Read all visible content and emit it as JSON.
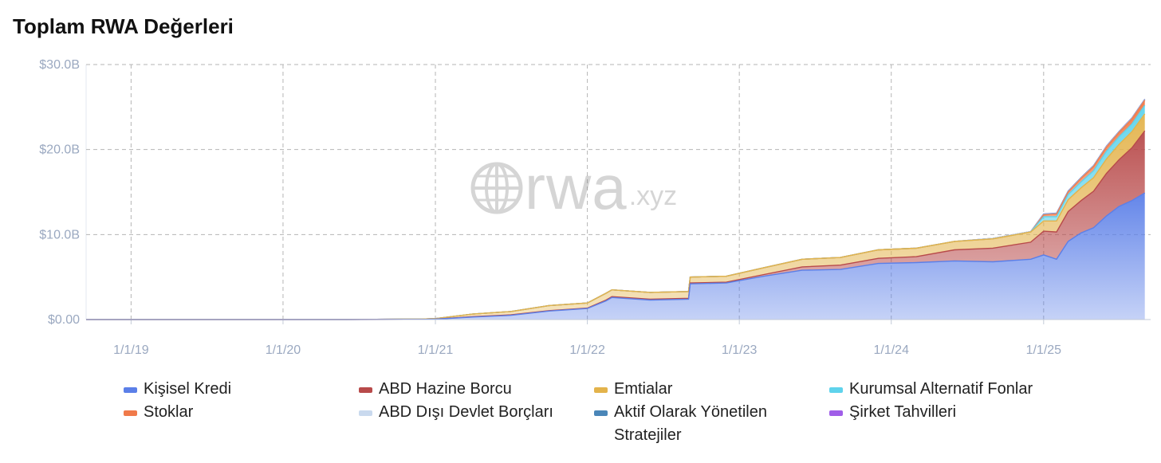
{
  "title": "Toplam RWA Değerleri",
  "watermark": {
    "main": "rwa",
    "sub": ".xyz",
    "icon": "globe-icon"
  },
  "chart_data": {
    "type": "area",
    "stacked": true,
    "x_ticks": [
      "1/1/19",
      "1/1/20",
      "1/1/21",
      "1/1/22",
      "1/1/23",
      "1/1/24",
      "1/1/25"
    ],
    "y_ticks": [
      "$0.00",
      "$10.0B",
      "$20.0B",
      "$30.0B"
    ],
    "ylim": [
      0,
      30
    ],
    "y_unit": "B USD",
    "xlim": [
      "2018-09-15",
      "2025-09-15"
    ],
    "grid": true,
    "legend_position": "bottom",
    "x": [
      "2018-09-15",
      "2019-06-01",
      "2020-06-01",
      "2020-12-01",
      "2021-01-01",
      "2021-04-01",
      "2021-07-01",
      "2021-10-01",
      "2022-01-01",
      "2022-02-15",
      "2022-03-01",
      "2022-06-01",
      "2022-09-01",
      "2022-09-05",
      "2022-12-01",
      "2023-03-01",
      "2023-06-01",
      "2023-09-01",
      "2023-12-01",
      "2024-03-01",
      "2024-06-01",
      "2024-09-01",
      "2024-12-01",
      "2025-01-01",
      "2025-02-01",
      "2025-03-01",
      "2025-04-01",
      "2025-05-01",
      "2025-06-01",
      "2025-07-01",
      "2025-08-01",
      "2025-09-01"
    ],
    "series": [
      {
        "name": "Kişisel Kredi",
        "color": "#5b7fe8",
        "values": [
          0,
          0,
          0,
          0.02,
          0.05,
          0.3,
          0.5,
          1.0,
          1.3,
          2.2,
          2.6,
          2.3,
          2.4,
          4.2,
          4.3,
          5.1,
          5.8,
          5.9,
          6.6,
          6.7,
          6.9,
          6.8,
          7.1,
          7.6,
          7.1,
          9.2,
          10.2,
          10.8,
          12.2,
          13.3,
          14.0,
          14.9
        ]
      },
      {
        "name": "ABD Hazine Borcu",
        "color": "#b84a4a",
        "values": [
          0,
          0,
          0,
          0,
          0.01,
          0.05,
          0.05,
          0.05,
          0.05,
          0.1,
          0.1,
          0.1,
          0.1,
          0.1,
          0.1,
          0.2,
          0.4,
          0.5,
          0.6,
          0.7,
          1.3,
          1.6,
          2.0,
          2.8,
          3.2,
          3.5,
          3.8,
          4.3,
          5.0,
          5.5,
          6.2,
          7.3
        ]
      },
      {
        "name": "Emtialar",
        "color": "#e3b34b",
        "values": [
          0,
          0,
          0.01,
          0.05,
          0.05,
          0.3,
          0.4,
          0.6,
          0.6,
          0.8,
          0.8,
          0.8,
          0.8,
          0.7,
          0.7,
          0.8,
          0.9,
          0.9,
          1.0,
          1.0,
          1.0,
          1.1,
          1.2,
          1.2,
          1.3,
          1.4,
          1.5,
          1.6,
          1.7,
          1.8,
          1.9,
          2.0
        ]
      },
      {
        "name": "Kurumsal Alternatif Fonlar",
        "color": "#5fd3ec",
        "values": [
          0,
          0,
          0,
          0,
          0,
          0,
          0,
          0,
          0,
          0,
          0,
          0,
          0,
          0,
          0,
          0,
          0,
          0,
          0,
          0,
          0,
          0,
          0,
          0.5,
          0.5,
          0.6,
          0.7,
          0.8,
          0.9,
          0.9,
          0.9,
          1.0
        ]
      },
      {
        "name": "Stoklar",
        "color": "#f07a4a",
        "values": [
          0,
          0,
          0,
          0,
          0,
          0,
          0,
          0,
          0,
          0,
          0,
          0,
          0,
          0,
          0,
          0,
          0,
          0,
          0,
          0,
          0,
          0,
          0,
          0.2,
          0.3,
          0.3,
          0.4,
          0.5,
          0.5,
          0.5,
          0.6,
          0.6
        ]
      },
      {
        "name": "ABD Dışı Devlet Borçları",
        "color": "#c9d9ee",
        "values": [
          0,
          0,
          0,
          0,
          0,
          0,
          0,
          0,
          0,
          0,
          0,
          0,
          0,
          0,
          0,
          0,
          0,
          0,
          0,
          0,
          0,
          0.05,
          0.05,
          0.05,
          0.05,
          0.05,
          0.05,
          0.05,
          0.05,
          0.05,
          0.05,
          0.05
        ]
      },
      {
        "name": "Aktif Olarak Yönetilen Stratejiler",
        "color": "#4a86b8",
        "values": [
          0,
          0,
          0,
          0,
          0,
          0,
          0,
          0,
          0,
          0,
          0,
          0,
          0,
          0,
          0,
          0,
          0,
          0,
          0,
          0,
          0,
          0,
          0,
          0.05,
          0.05,
          0.05,
          0.05,
          0.05,
          0.05,
          0.05,
          0.05,
          0.05
        ]
      },
      {
        "name": "Şirket Tahvilleri",
        "color": "#a05ee8",
        "values": [
          0,
          0,
          0,
          0,
          0,
          0,
          0,
          0,
          0,
          0,
          0,
          0,
          0,
          0,
          0,
          0,
          0,
          0,
          0,
          0,
          0,
          0,
          0,
          0.02,
          0.02,
          0.02,
          0.02,
          0.02,
          0.02,
          0.02,
          0.02,
          0.02
        ]
      }
    ]
  },
  "legend": [
    {
      "label": "Kişisel Kredi",
      "color": "#5b7fe8"
    },
    {
      "label": "ABD Hazine Borcu",
      "color": "#b84a4a"
    },
    {
      "label": "Emtialar",
      "color": "#e3b34b"
    },
    {
      "label": "Kurumsal Alternatif Fonlar",
      "color": "#5fd3ec"
    },
    {
      "label": "Stoklar",
      "color": "#f07a4a"
    },
    {
      "label": "ABD Dışı Devlet Borçları",
      "color": "#c9d9ee"
    },
    {
      "label": "Aktif Olarak Yönetilen Stratejiler",
      "color": "#4a86b8"
    },
    {
      "label": "Şirket Tahvilleri",
      "color": "#a05ee8"
    }
  ]
}
